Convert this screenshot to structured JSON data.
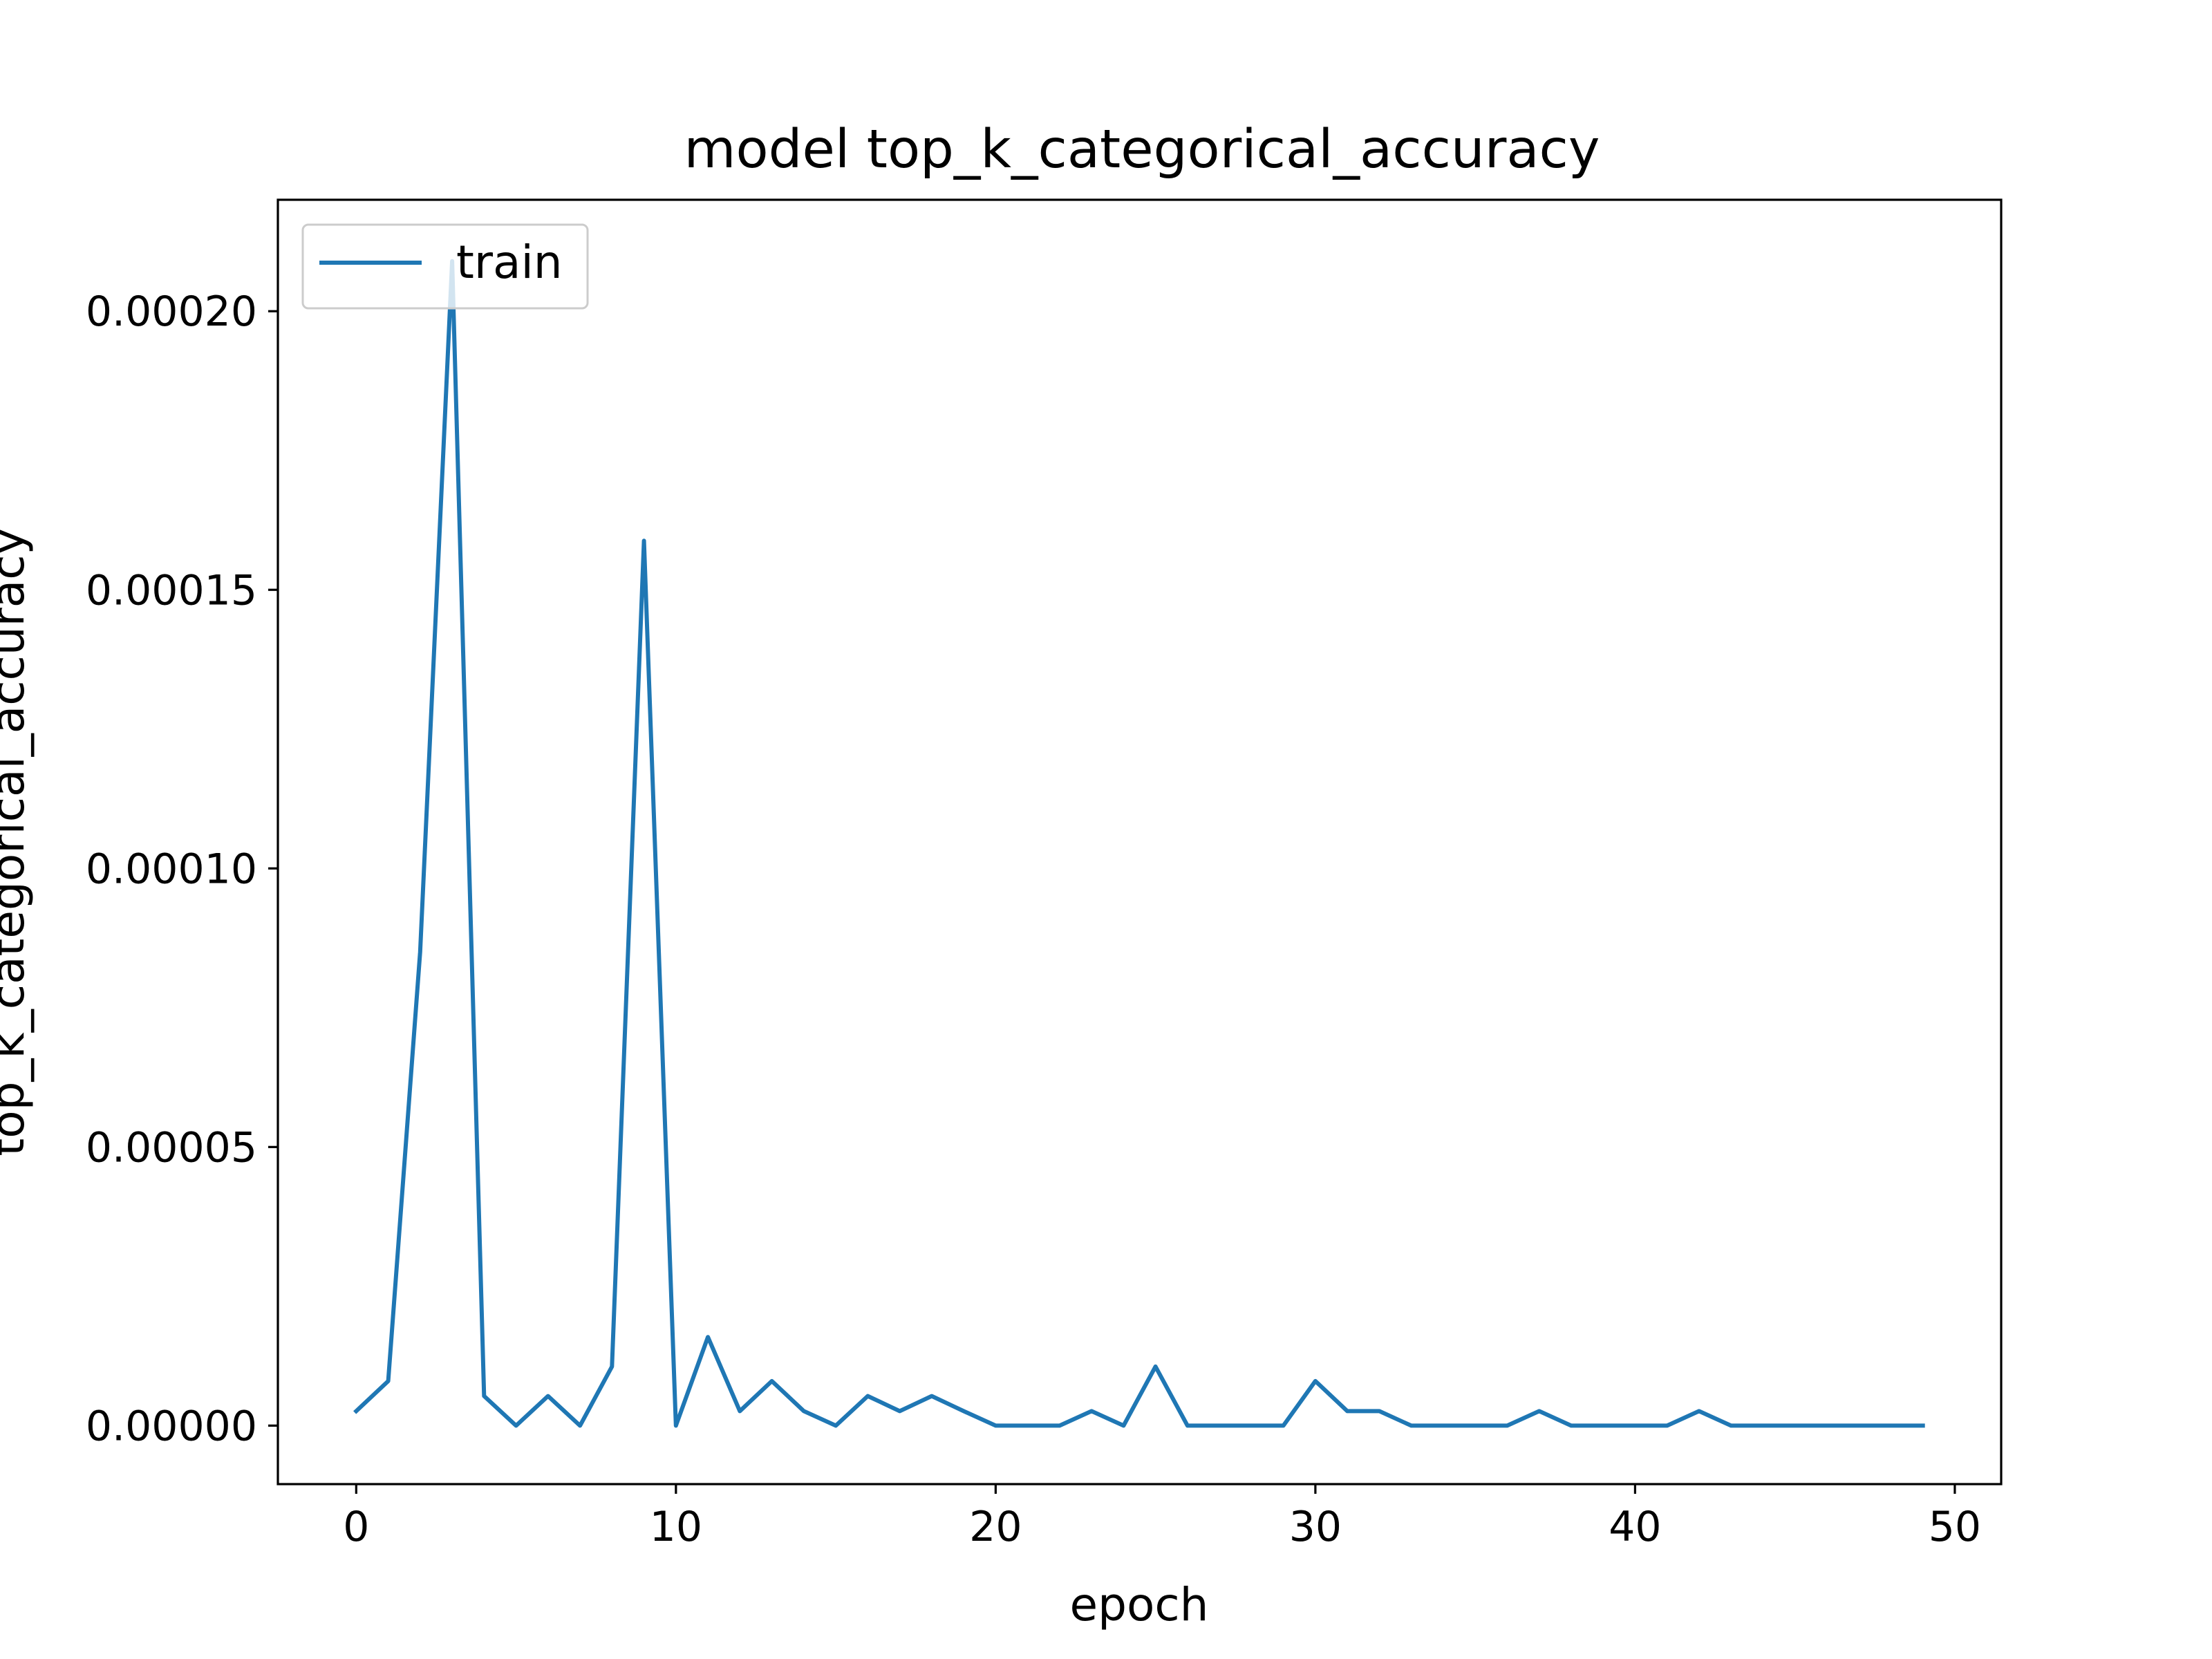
{
  "chart_data": {
    "type": "line",
    "title": "model top_k_categorical_accuracy",
    "xlabel": "epoch",
    "ylabel": "top_k_categorical_accuracy",
    "xlim": [
      -2.45,
      51.45
    ],
    "ylim": [
      -1.05e-05,
      0.00022
    ],
    "x_ticks": [
      0,
      10,
      20,
      30,
      40,
      50
    ],
    "x_tick_labels": [
      "0",
      "10",
      "20",
      "30",
      "40",
      "50"
    ],
    "y_ticks": [
      0,
      5e-05,
      0.0001,
      0.00015,
      0.0002
    ],
    "y_tick_labels": [
      "0.00000",
      "0.00005",
      "0.00010",
      "0.00015",
      "0.00020"
    ],
    "grid": false,
    "legend_position": "upper left",
    "series": [
      {
        "name": "train",
        "color": "#1f77b4",
        "x": [
          0,
          1,
          2,
          3,
          4,
          5,
          6,
          7,
          8,
          9,
          10,
          11,
          12,
          13,
          14,
          15,
          16,
          17,
          18,
          19,
          20,
          21,
          22,
          23,
          24,
          25,
          26,
          27,
          28,
          29,
          30,
          31,
          32,
          33,
          34,
          35,
          36,
          37,
          38,
          39,
          40,
          41,
          42,
          43,
          44,
          45,
          46,
          47,
          48,
          49
        ],
        "values": [
          2.6e-06,
          8e-06,
          8.5e-05,
          0.000209,
          5.3e-06,
          0,
          5.3e-06,
          0,
          1.06e-05,
          0.0001588,
          0,
          1.59e-05,
          2.6e-06,
          8e-06,
          2.6e-06,
          0,
          5.3e-06,
          2.6e-06,
          5.3e-06,
          2.6e-06,
          0,
          0,
          0,
          2.6e-06,
          0,
          1.06e-05,
          0,
          0,
          0,
          0,
          8e-06,
          2.6e-06,
          2.6e-06,
          0,
          0,
          0,
          0,
          2.6e-06,
          0,
          0,
          0,
          0,
          2.6e-06,
          0,
          0,
          0,
          0,
          0,
          0,
          0
        ]
      }
    ]
  }
}
